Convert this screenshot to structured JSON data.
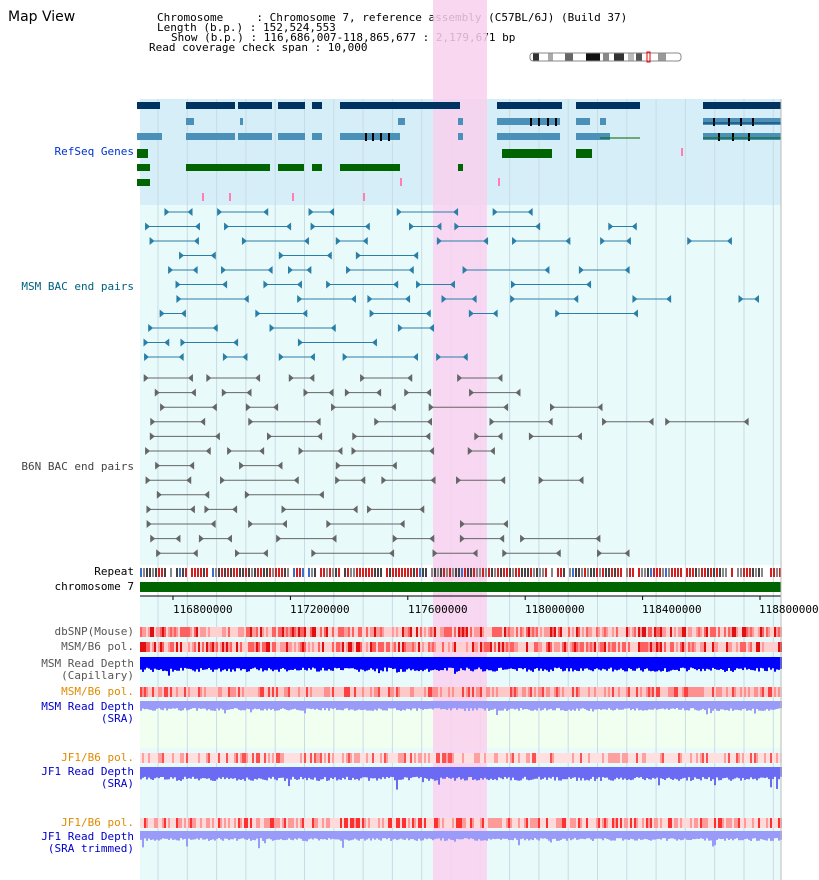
{
  "title": "Map View",
  "header": {
    "line1": "Chromosome     : Chromosome 7, reference assembly (C57BL/6J) (Build 37)",
    "line2": "Length (b.p.) : 152,524,553",
    "line3": "Show (b.p.) : 116,686,007-118,865,677 : 2,179,671 bp",
    "line4": "Read coverage check span : 10,000"
  },
  "tracks": {
    "refseq": "RefSeq Genes",
    "msm_bac": "MSM BAC end pairs",
    "b6n_bac": "B6N BAC end pairs",
    "repeat": "Repeat",
    "chromosome": "chromosome 7",
    "dbsnp": "dbSNP(Mouse)",
    "msm_b6_pol": "MSM/B6 pol.",
    "msm_depth_cap": "MSM Read Depth\n(Capillary)",
    "msm_b6_pol2": "MSM/B6 pol.",
    "msm_depth_sra": "MSM Read Depth\n(SRA)",
    "jf1_b6_pol": "JF1/B6 pol.",
    "jf1_depth_sra": "JF1 Read Depth\n(SRA)",
    "jf1_b6_pol2": "JF1/B6 pol.",
    "jf1_depth_trim": "JF1 Read Depth\n(SRA trimmed)"
  },
  "axis": {
    "ticks": [
      "116800000",
      "117200000",
      "117600000",
      "118000000",
      "118400000",
      "118800000"
    ]
  },
  "colors": {
    "refseq_bg": "#d6eef8",
    "bac_bg": "#e8fafa",
    "highlight": "#f9d0ef",
    "navy": "#00335f",
    "steel": "#4a90b8",
    "green": "#006400"
  }
}
